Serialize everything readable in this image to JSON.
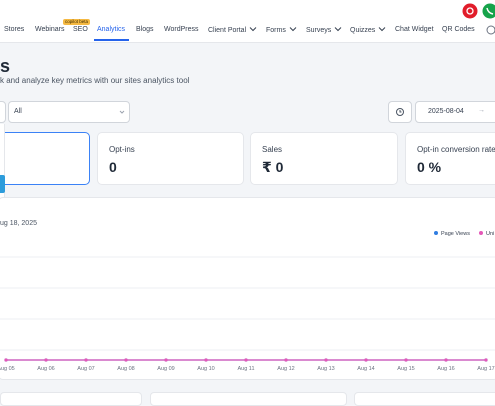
{
  "nav": {
    "items": [
      {
        "label": "Stores",
        "dropdown": false
      },
      {
        "label": "Webinars",
        "dropdown": false
      },
      {
        "label": "SEO",
        "dropdown": false
      },
      {
        "label": "Analytics",
        "dropdown": false,
        "active": true
      },
      {
        "label": "Blogs",
        "dropdown": false
      },
      {
        "label": "WordPress",
        "dropdown": false
      },
      {
        "label": "Client Portal",
        "dropdown": true
      },
      {
        "label": "Forms",
        "dropdown": true
      },
      {
        "label": "Surveys",
        "dropdown": true
      },
      {
        "label": "Quizzes",
        "dropdown": true
      },
      {
        "label": "Chat Widget",
        "dropdown": false
      },
      {
        "label": "QR Codes",
        "dropdown": false
      }
    ],
    "badge": "copilot beta"
  },
  "header": {
    "title": "s",
    "subtitle": "k and analyze key metrics with our sites analytics tool"
  },
  "filters": {
    "segment": "All",
    "date_from": "2025-08-04"
  },
  "cards": [
    {
      "label": "Opt-ins",
      "value": "0"
    },
    {
      "label": "Sales",
      "value": "₹ 0"
    },
    {
      "label": "Opt-in conversion rate",
      "value": "0 %"
    }
  ],
  "chart": {
    "type": "line",
    "date_label": "ug 18, 2025",
    "categories": [
      "Aug 05",
      "Aug 06",
      "Aug 07",
      "Aug 08",
      "Aug 09",
      "Aug 10",
      "Aug 11",
      "Aug 12",
      "Aug 13",
      "Aug 14",
      "Aug 15",
      "Aug 16",
      "Aug 17"
    ],
    "series": [
      {
        "name": "Page Views",
        "color": "#2f7de1",
        "values": [
          0,
          0,
          0,
          0,
          0,
          0,
          0,
          0,
          0,
          0,
          0,
          0,
          0
        ]
      },
      {
        "name": "Uni",
        "color": "#e458b8",
        "values": [
          0,
          0,
          0,
          0,
          0,
          0,
          0,
          0,
          0,
          0,
          0,
          0,
          0
        ]
      }
    ],
    "ylim": [
      0,
      1
    ]
  }
}
